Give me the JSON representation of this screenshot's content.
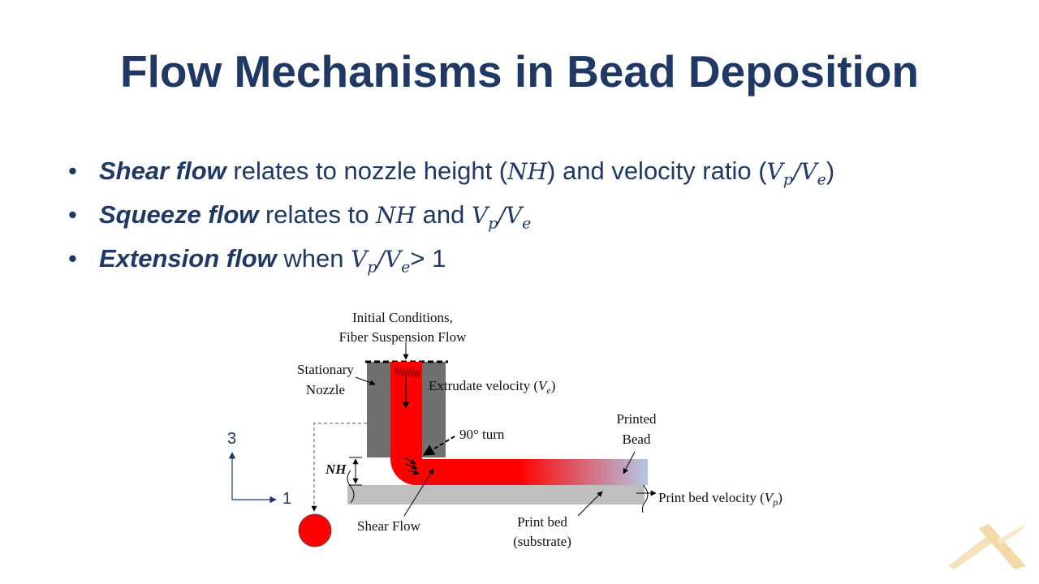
{
  "title": "Flow Mechanisms in Bead Deposition",
  "bullets": [
    {
      "term": "Shear flow",
      "text": " relates to nozzle height (",
      "math1": "NH",
      "text2": ") and velocity ratio (",
      "math2": "V",
      "sub2": "p",
      "slash2": "/V",
      "sub2b": "e",
      "text3": ")"
    },
    {
      "term": "Squeeze flow",
      "text": " relates to ",
      "math1": "NH",
      "text2": " and ",
      "math2": "V",
      "sub2": "p",
      "slash2": "/V",
      "sub2b": "e"
    },
    {
      "term": "Extension flow",
      "text": " when ",
      "math2": "V",
      "sub2": "p",
      "slash2": "/V",
      "sub2b": "e",
      "text3": "> 1"
    }
  ],
  "diagram": {
    "initial_conditions": "Initial Conditions,",
    "fiber_flow": "Fiber Suspension Flow",
    "stationary": "Stationary",
    "nozzle": "Nozzle",
    "extrudate_velocity": "Extrudate velocity",
    "extrudate_symbol": "V",
    "extrudate_sub": "e",
    "turn": "90° turn",
    "printed": "Printed",
    "bead": "Bead",
    "nh": "NH",
    "shear_flow": "Shear Flow",
    "print_bed": "Print bed",
    "substrate": "(substrate)",
    "print_bed_velocity": "Print bed velocity",
    "bed_symbol": "V",
    "bed_sub": "p",
    "axis_vertical": "3",
    "axis_horizontal": "1"
  },
  "colors": {
    "title": "#1f3864",
    "nozzle": "#707070",
    "flow": "#ff0000",
    "bead_end": "#b4c7e7",
    "bed": "#bfbfbf",
    "logo": "#f4d9a8"
  }
}
